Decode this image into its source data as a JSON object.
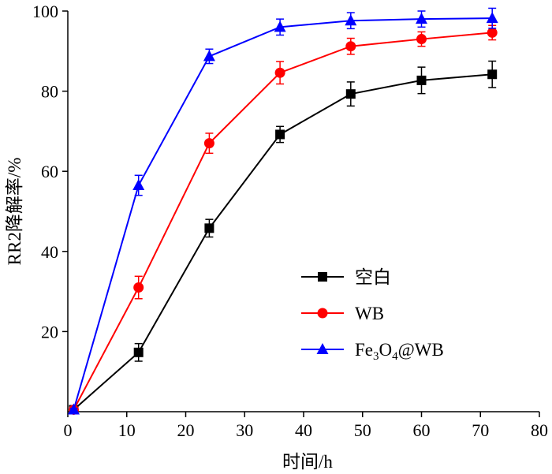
{
  "chart_data": {
    "type": "line",
    "title": "",
    "xlabel": "时间/h",
    "ylabel": "RR2降解率/%",
    "xlim": [
      0,
      80
    ],
    "ylim": [
      0,
      100
    ],
    "xticks": [
      0,
      10,
      20,
      30,
      40,
      50,
      60,
      70,
      80
    ],
    "yticks": [
      20,
      40,
      60,
      80,
      100
    ],
    "x_tick_labels": [
      "0",
      "10",
      "20",
      "30",
      "40",
      "50",
      "60",
      "70",
      "80"
    ],
    "y_tick_labels": [
      "20",
      "40",
      "60",
      "80",
      "100"
    ],
    "grid": false,
    "legend_position": "center-right",
    "x": [
      1,
      12,
      24,
      36,
      48,
      60,
      72
    ],
    "series": [
      {
        "name": "空白",
        "color": "#000000",
        "marker": "square",
        "values": [
          0.5,
          14.8,
          45.8,
          69.2,
          79.3,
          82.7,
          84.2
        ],
        "errors": [
          0.3,
          2.2,
          2.2,
          2.0,
          3.0,
          3.3,
          3.3
        ]
      },
      {
        "name": "WB",
        "color": "#ff0000",
        "marker": "circle",
        "values": [
          0.5,
          31.0,
          67.0,
          84.6,
          91.2,
          93.0,
          94.6
        ],
        "errors": [
          0.3,
          2.8,
          2.5,
          2.8,
          2.0,
          1.8,
          1.8
        ]
      },
      {
        "name_parts": [
          "Fe",
          "3",
          "O",
          "4",
          "@WB"
        ],
        "color": "#0000ff",
        "marker": "triangle",
        "values": [
          0.5,
          56.5,
          88.7,
          96.0,
          97.6,
          98.0,
          98.2
        ],
        "errors": [
          0.3,
          2.5,
          1.8,
          2.0,
          2.0,
          2.0,
          2.5
        ]
      }
    ]
  }
}
